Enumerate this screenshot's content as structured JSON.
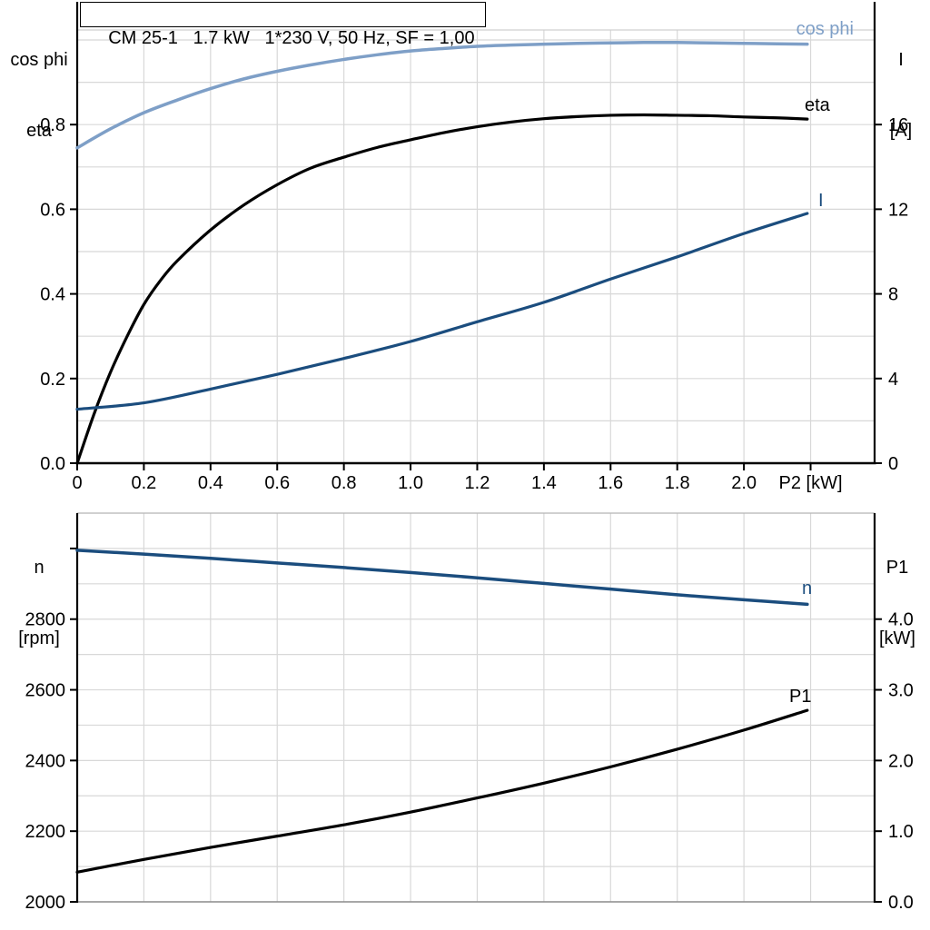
{
  "title_box": {
    "text": "CM 25-1   1.7 kW   1*230 V, 50 Hz, SF = 1,00"
  },
  "chart_data": [
    {
      "type": "line",
      "title": "CM 25-1 1.7 kW 1*230 V, 50 Hz, SF = 1,00",
      "grid": true,
      "legend_position": "curve-end-labels",
      "x_axis": {
        "label": "P2 [kW]",
        "min": 0,
        "max": 2.392,
        "grid_values": [
          0.2,
          0.4,
          0.6,
          0.8,
          1.0,
          1.2,
          1.4,
          1.6,
          1.8,
          2.0,
          2.2
        ],
        "ticks": [
          {
            "v": 0,
            "label": "0"
          },
          {
            "v": 0.2,
            "label": "0.2"
          },
          {
            "v": 0.4,
            "label": "0.4"
          },
          {
            "v": 0.6,
            "label": "0.6"
          },
          {
            "v": 0.8,
            "label": "0.8"
          },
          {
            "v": 1.0,
            "label": "1.0"
          },
          {
            "v": 1.2,
            "label": "1.2"
          },
          {
            "v": 1.4,
            "label": "1.4"
          },
          {
            "v": 1.6,
            "label": "1.6"
          },
          {
            "v": 1.8,
            "label": "1.8"
          },
          {
            "v": 2.0,
            "label": "2.0"
          },
          {
            "v": 2.2,
            "label": "P2 [kW]"
          }
        ]
      },
      "y_left": {
        "title_line1": "cos phi",
        "title_line2": "eta",
        "min": 0,
        "max": 1.0236,
        "grid_values": [
          0.1,
          0.2,
          0.3,
          0.4,
          0.5,
          0.6,
          0.7,
          0.8,
          0.9,
          1.0
        ],
        "ticks": [
          {
            "v": 0.0,
            "label": "0.0"
          },
          {
            "v": 0.2,
            "label": "0.2"
          },
          {
            "v": 0.4,
            "label": "0.4"
          },
          {
            "v": 0.6,
            "label": "0.6"
          },
          {
            "v": 0.8,
            "label": "0.8"
          }
        ]
      },
      "y_right": {
        "title_line1": "I",
        "title_line2": "[A]",
        "min": 0,
        "max": 20.47,
        "grid_values": [],
        "ticks": [
          {
            "v": 0,
            "label": "0"
          },
          {
            "v": 4,
            "label": "4"
          },
          {
            "v": 8,
            "label": "8"
          },
          {
            "v": 12,
            "label": "12"
          },
          {
            "v": 16,
            "label": "16"
          }
        ]
      },
      "series": [
        {
          "name": "cos phi",
          "axis": "left",
          "color": "#7E9FC7",
          "width": 3.5,
          "points": [
            [
              0,
              0.745
            ],
            [
              0.1,
              0.79
            ],
            [
              0.2,
              0.828
            ],
            [
              0.3,
              0.858
            ],
            [
              0.4,
              0.885
            ],
            [
              0.5,
              0.908
            ],
            [
              0.6,
              0.926
            ],
            [
              0.7,
              0.941
            ],
            [
              0.8,
              0.954
            ],
            [
              0.9,
              0.965
            ],
            [
              1.0,
              0.974
            ],
            [
              1.1,
              0.98
            ],
            [
              1.2,
              0.985
            ],
            [
              1.3,
              0.988
            ],
            [
              1.4,
              0.99
            ],
            [
              1.5,
              0.992
            ],
            [
              1.6,
              0.993
            ],
            [
              1.7,
              0.994
            ],
            [
              1.8,
              0.994
            ],
            [
              1.9,
              0.993
            ],
            [
              2.0,
              0.992
            ],
            [
              2.1,
              0.991
            ],
            [
              2.19,
              0.99
            ]
          ]
        },
        {
          "name": "eta",
          "axis": "left",
          "color": "#000000",
          "width": 3.2,
          "points": [
            [
              0,
              0
            ],
            [
              0.05,
              0.115
            ],
            [
              0.1,
              0.215
            ],
            [
              0.15,
              0.3
            ],
            [
              0.2,
              0.375
            ],
            [
              0.25,
              0.432
            ],
            [
              0.3,
              0.478
            ],
            [
              0.4,
              0.551
            ],
            [
              0.5,
              0.61
            ],
            [
              0.6,
              0.658
            ],
            [
              0.7,
              0.697
            ],
            [
              0.8,
              0.723
            ],
            [
              0.9,
              0.746
            ],
            [
              1.0,
              0.764
            ],
            [
              1.1,
              0.781
            ],
            [
              1.2,
              0.795
            ],
            [
              1.3,
              0.806
            ],
            [
              1.4,
              0.814
            ],
            [
              1.5,
              0.819
            ],
            [
              1.6,
              0.822
            ],
            [
              1.7,
              0.823
            ],
            [
              1.8,
              0.822
            ],
            [
              1.9,
              0.821
            ],
            [
              2.0,
              0.818
            ],
            [
              2.1,
              0.816
            ],
            [
              2.19,
              0.813
            ]
          ]
        },
        {
          "name": "I",
          "axis": "right",
          "color": "#1B4D7E",
          "width": 3.2,
          "points": [
            [
              0,
              2.55
            ],
            [
              0.2,
              2.85
            ],
            [
              0.4,
              3.5
            ],
            [
              0.6,
              4.2
            ],
            [
              0.8,
              4.95
            ],
            [
              1.0,
              5.75
            ],
            [
              1.2,
              6.68
            ],
            [
              1.4,
              7.6
            ],
            [
              1.6,
              8.7
            ],
            [
              1.8,
              9.75
            ],
            [
              2.0,
              10.85
            ],
            [
              2.19,
              11.8
            ]
          ]
        }
      ]
    },
    {
      "type": "line",
      "grid": true,
      "legend_position": "curve-end-labels",
      "x_axis": {
        "label": "",
        "min": 0,
        "max": 2.392,
        "grid_values": [
          0.2,
          0.4,
          0.6,
          0.8,
          1.0,
          1.2,
          1.4,
          1.6,
          1.8,
          2.0,
          2.2
        ],
        "ticks": []
      },
      "y_left": {
        "title_line1": "n",
        "title_line2": "[rpm]",
        "min": 2000,
        "max": 3100,
        "grid_values": [
          2100,
          2200,
          2300,
          2400,
          2500,
          2600,
          2700,
          2800,
          2900,
          3000
        ],
        "ticks": [
          {
            "v": 2000,
            "label": "2000"
          },
          {
            "v": 2200,
            "label": "2200"
          },
          {
            "v": 2400,
            "label": "2400"
          },
          {
            "v": 2600,
            "label": "2600"
          },
          {
            "v": 2800,
            "label": "2800"
          },
          {
            "v": 3000,
            "label": ""
          }
        ]
      },
      "y_right": {
        "title_line1": "P1",
        "title_line2": "[kW]",
        "min": 0,
        "max": 5.5,
        "grid_values": [],
        "ticks": [
          {
            "v": 0,
            "label": "0.0"
          },
          {
            "v": 1,
            "label": "1.0"
          },
          {
            "v": 2,
            "label": "2.0"
          },
          {
            "v": 3,
            "label": "3.0"
          },
          {
            "v": 4,
            "label": "4.0"
          }
        ]
      },
      "series": [
        {
          "name": "n",
          "axis": "left",
          "color": "#1B4D7E",
          "width": 3.5,
          "points": [
            [
              0,
              2995
            ],
            [
              0.2,
              2984
            ],
            [
              0.4,
              2972
            ],
            [
              0.6,
              2959
            ],
            [
              0.8,
              2946
            ],
            [
              1.0,
              2932
            ],
            [
              1.2,
              2917
            ],
            [
              1.4,
              2901
            ],
            [
              1.6,
              2885
            ],
            [
              1.8,
              2869
            ],
            [
              2.0,
              2855
            ],
            [
              2.19,
              2842
            ]
          ]
        },
        {
          "name": "P1",
          "axis": "left-rpm-equivalent",
          "color": "#000000",
          "width": 3.2,
          "points_kw": [
            [
              0,
              0.42
            ],
            [
              0.2,
              0.6
            ],
            [
              0.4,
              0.77
            ],
            [
              0.6,
              0.93
            ],
            [
              0.8,
              1.09
            ],
            [
              1.0,
              1.27
            ],
            [
              1.2,
              1.47
            ],
            [
              1.4,
              1.68
            ],
            [
              1.6,
              1.91
            ],
            [
              1.8,
              2.16
            ],
            [
              2.0,
              2.43
            ],
            [
              2.19,
              2.71
            ]
          ]
        }
      ]
    }
  ],
  "colors": {
    "light_blue": "#7E9FC7",
    "dark_blue": "#1B4D7E",
    "black": "#000000",
    "gridline": "#D8D8D8",
    "border_gray": "#8C8C8C"
  }
}
